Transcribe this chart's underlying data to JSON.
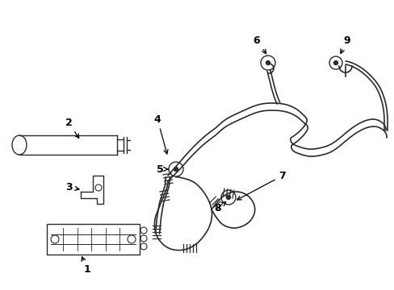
{
  "bg_color": "#ffffff",
  "line_color": "#2a2a2a",
  "label_color": "#000000",
  "figsize": [
    4.89,
    3.6
  ],
  "dpi": 100,
  "label_fontsize": 9
}
